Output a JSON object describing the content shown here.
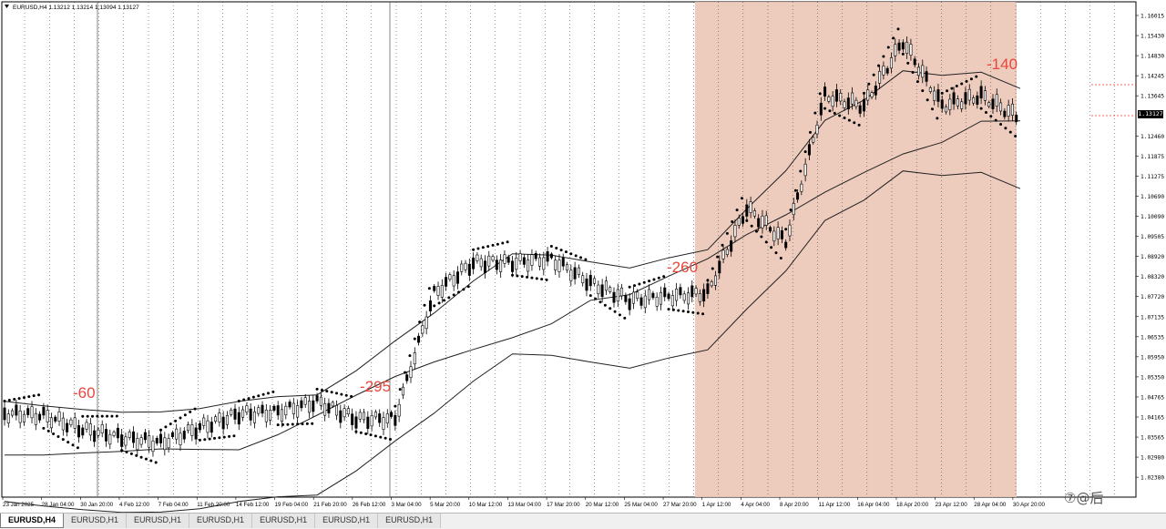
{
  "window": {
    "header": "EURUSD,H4  1.13212 1.13214 1.13094 1.13127"
  },
  "price_axis": {
    "labels": [
      "1.16015",
      "1.15430",
      "1.14830",
      "1.14245",
      "1.13645",
      "1.13127",
      "1.12460",
      "1.11875",
      "1.11275",
      "1.10690",
      "1.10090",
      "1.09505",
      "1.08920",
      "1.08320",
      "1.07720",
      "1.07135",
      "1.06535",
      "1.05950",
      "1.05350",
      "1.04765",
      "1.04165",
      "1.03565",
      "1.02980",
      "1.02380"
    ],
    "current_price": "1.13127"
  },
  "time_axis": {
    "labels": [
      "23 Jan 2025",
      "28 Jan 04:00",
      "30 Jan 20:00",
      "4 Feb 12:00",
      "7 Feb 04:00",
      "11 Feb 20:00",
      "14 Feb 12:00",
      "19 Feb 04:00",
      "21 Feb 20:00",
      "26 Feb 12:00",
      "3 Mar 04:00",
      "5 Mar 20:00",
      "10 Mar 12:00",
      "13 Mar 04:00",
      "17 Mar 20:00",
      "20 Mar 12:00",
      "25 Mar 04:00",
      "27 Mar 20:00",
      "1 Apr 12:00",
      "4 Apr 04:00",
      "8 Apr 20:00",
      "11 Apr 12:00",
      "16 Apr 04:00",
      "18 Apr 20:00",
      "23 Apr 12:00",
      "28 Apr 04:00",
      "30 Apr 20:00"
    ]
  },
  "annotations": [
    "-60",
    "-295",
    "-260",
    "-140"
  ],
  "tabs": [
    "EURUSD,H4",
    "EURUSD,H1",
    "EURUSD,H1",
    "EURUSD,H1",
    "EURUSD,H1",
    "EURUSD,H1",
    "EURUSD,H1"
  ],
  "watermark": "⑦@后",
  "colors": {
    "background": "#ffffff",
    "highlight_zone": "#ebc5b6",
    "annotation": "#e8473c",
    "bull_highlight": "#22dd22",
    "bear_highlight": "#ee3333"
  },
  "chart_data": {
    "type": "line",
    "symbol": "EURUSD",
    "timeframe": "H4",
    "ohlc": {
      "open": 1.13212,
      "high": 1.13214,
      "low": 1.13094,
      "close": 1.13127
    },
    "x": [
      "23 Jan",
      "28 Jan",
      "30 Jan",
      "4 Feb",
      "7 Feb",
      "11 Feb",
      "14 Feb",
      "19 Feb",
      "21 Feb",
      "26 Feb",
      "3 Mar",
      "5 Mar",
      "10 Mar",
      "13 Mar",
      "17 Mar",
      "20 Mar",
      "25 Mar",
      "27 Mar",
      "1 Apr",
      "4 Apr",
      "8 Apr",
      "11 Apr",
      "16 Apr",
      "18 Apr",
      "23 Apr",
      "28 Apr",
      "30 Apr"
    ],
    "series": [
      {
        "values": [
          1.0445,
          1.044,
          1.04,
          1.0375,
          1.036,
          1.0405,
          1.0445,
          1.045,
          1.048,
          1.043,
          1.043,
          1.08,
          1.089,
          1.089,
          1.09,
          1.083,
          1.078,
          1.079,
          1.08,
          1.105,
          1.095,
          1.138,
          1.135,
          1.154,
          1.135,
          1.138,
          1.1313
        ]
      }
    ],
    "ylim": [
      1.02,
      1.164
    ],
    "highlight_range": [
      "28 Mar",
      "30 Apr"
    ]
  }
}
